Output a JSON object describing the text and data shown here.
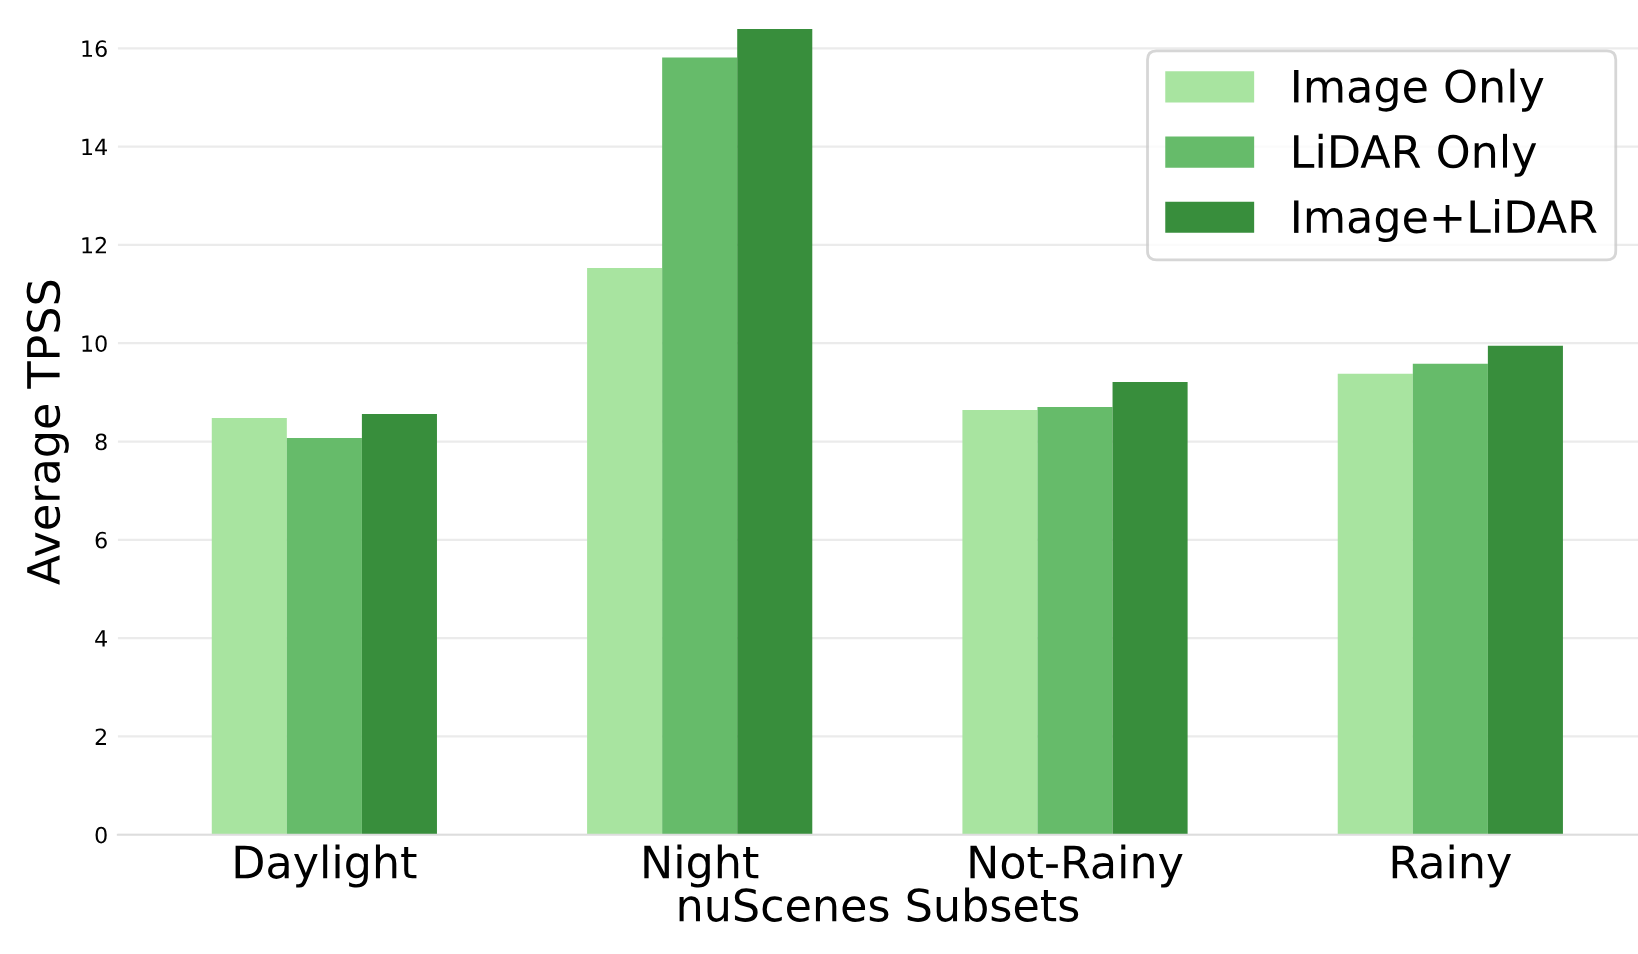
{
  "chart_data": {
    "type": "bar",
    "xlabel": "nuScenes Subsets",
    "ylabel": "Average TPSS",
    "categories": [
      "Daylight",
      "Night",
      "Not-Rainy",
      "Rainy"
    ],
    "series": [
      {
        "name": "Image Only",
        "color": "#a8e4a0",
        "values": [
          8.48,
          11.53,
          8.64,
          9.38
        ]
      },
      {
        "name": "LiDAR Only",
        "color": "#66bb6a",
        "values": [
          8.07,
          15.81,
          8.7,
          9.58
        ]
      },
      {
        "name": "Image+LiDAR",
        "color": "#388e3c",
        "values": [
          8.56,
          16.39,
          9.21,
          9.95
        ]
      }
    ],
    "ylim": [
      0,
      16.4
    ],
    "yticks": [
      0,
      2,
      4,
      6,
      8,
      10,
      12,
      14,
      16
    ],
    "grid": "y",
    "legend": "top right"
  }
}
